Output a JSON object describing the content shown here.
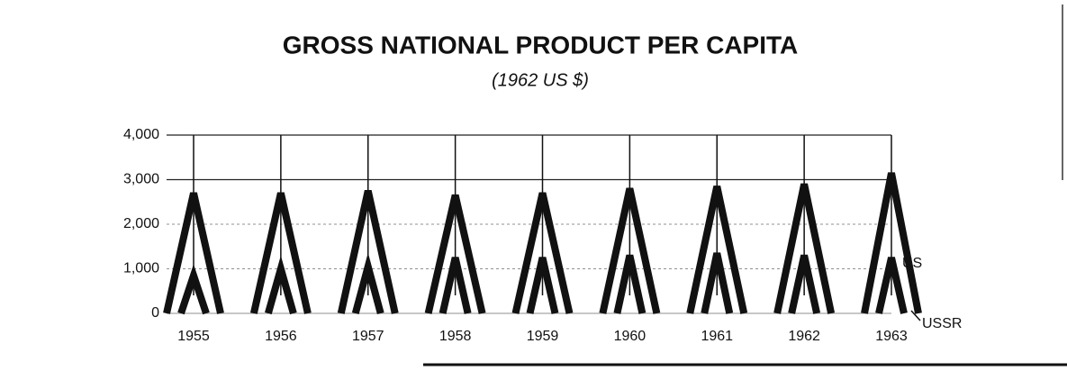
{
  "chart_data": {
    "type": "tent",
    "title": "GROSS NATIONAL PRODUCT PER CAPITA",
    "subtitle": "(1962 US $)",
    "categories": [
      "1955",
      "1956",
      "1957",
      "1958",
      "1959",
      "1960",
      "1961",
      "1962",
      "1963"
    ],
    "series": [
      {
        "name": "US",
        "color": "#111111",
        "values": [
          2700,
          2700,
          2750,
          2650,
          2700,
          2800,
          2850,
          2900,
          3150
        ]
      },
      {
        "name": "USSR",
        "color": "#111111",
        "values": [
          850,
          1000,
          1050,
          1250,
          1250,
          1300,
          1350,
          1300,
          1250
        ]
      }
    ],
    "ylim": [
      0,
      4000
    ],
    "yticks": [
      0,
      {
        "value": 1000,
        "label": "1,000"
      },
      {
        "value": 2000,
        "label": "2,000"
      },
      {
        "value": 3000,
        "label": "3,000"
      },
      {
        "value": 4000,
        "label": "4,000"
      }
    ],
    "grid": true
  }
}
